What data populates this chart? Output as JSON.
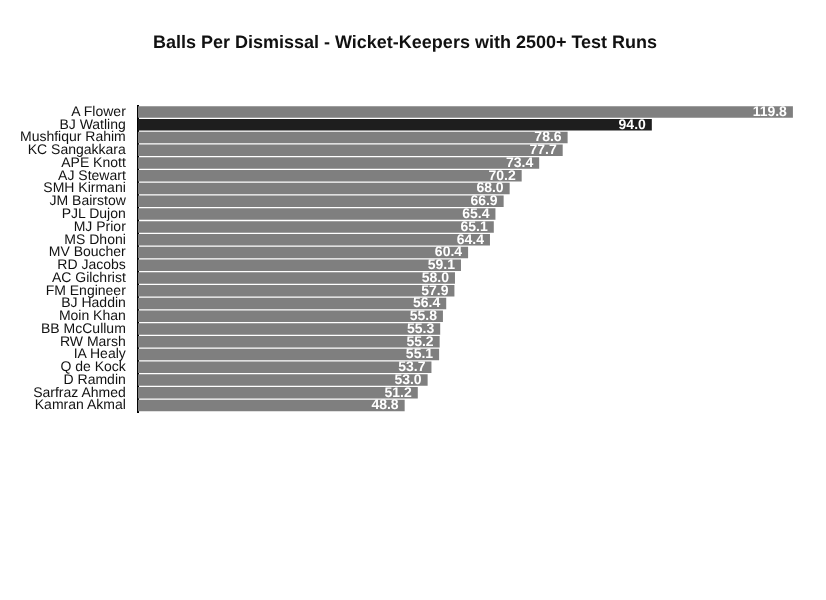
{
  "chart_data": {
    "type": "bar",
    "orientation": "horizontal",
    "title": "Balls Per Dismissal - Wicket-Keepers with 2500+ Test Runs",
    "categories": [
      "A Flower",
      "BJ Watling",
      "Mushfiqur Rahim",
      "KC Sangakkara",
      "APE Knott",
      "AJ Stewart",
      "SMH Kirmani",
      "JM Bairstow",
      "PJL Dujon",
      "MJ Prior",
      "MS Dhoni",
      "MV Boucher",
      "RD Jacobs",
      "AC Gilchrist",
      "FM Engineer",
      "BJ Haddin",
      "Moin Khan",
      "BB McCullum",
      "RW Marsh",
      "IA Healy",
      "Q de Kock",
      "D Ramdin",
      "Sarfraz Ahmed",
      "Kamran Akmal"
    ],
    "values": [
      119.8,
      94.0,
      78.6,
      77.7,
      73.4,
      70.2,
      68.0,
      66.9,
      65.4,
      65.1,
      64.4,
      60.4,
      59.1,
      58.0,
      57.9,
      56.4,
      55.8,
      55.3,
      55.2,
      55.1,
      53.7,
      53.0,
      51.2,
      48.8
    ],
    "value_labels": [
      "119.8",
      "94.0",
      "78.6",
      "77.7",
      "73.4",
      "70.2",
      "68.0",
      "66.9",
      "65.4",
      "65.1",
      "64.4",
      "60.4",
      "59.1",
      "58.0",
      "57.9",
      "56.4",
      "55.8",
      "55.3",
      "55.2",
      "55.1",
      "53.7",
      "53.0",
      "51.2",
      "48.8"
    ],
    "colors": [
      "#7f7f7f",
      "#1e1e1e",
      "#7f7f7f",
      "#7f7f7f",
      "#7f7f7f",
      "#7f7f7f",
      "#7f7f7f",
      "#7f7f7f",
      "#7f7f7f",
      "#7f7f7f",
      "#7f7f7f",
      "#7f7f7f",
      "#7f7f7f",
      "#7f7f7f",
      "#7f7f7f",
      "#7f7f7f",
      "#7f7f7f",
      "#7f7f7f",
      "#7f7f7f",
      "#7f7f7f",
      "#7f7f7f",
      "#7f7f7f",
      "#7f7f7f",
      "#7f7f7f"
    ],
    "xlim": [
      0,
      120
    ],
    "tick_labels": "y"
  }
}
